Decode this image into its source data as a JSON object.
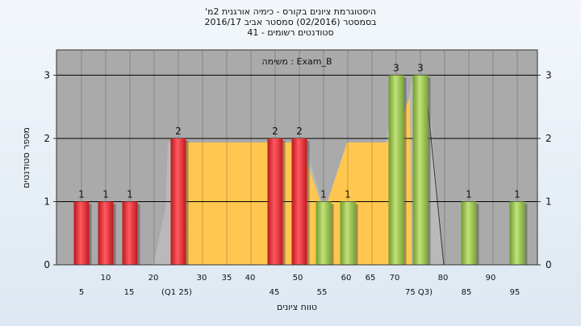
{
  "chart_data": {
    "type": "bar",
    "title_lines": [
      "היסטוגרמת ציונים בקורס - כימיה אורגנית 2מ'",
      "בסמסטר (02/2016) סמסטר אביב 2016/17",
      "סטודנטים רשומים - 41"
    ],
    "annotation": "משימה : Exam_B",
    "xlabel": "טווח ציונים",
    "ylabel": "מספר סטודנטים",
    "ylim": [
      0,
      3.4
    ],
    "y_ticks": [
      "0",
      "1",
      "2",
      "3"
    ],
    "x_tick_labels_top": [
      "10",
      "20",
      "30",
      "35",
      "40",
      "50",
      "60",
      "65",
      "70",
      "80",
      "90"
    ],
    "x_tick_labels_bottom": [
      "5",
      "15",
      "(Q1 25)",
      "45",
      "55",
      "75 Q3)",
      "85",
      "95"
    ],
    "categories": [
      "5",
      "10",
      "15",
      "25",
      "45",
      "50",
      "55",
      "60",
      "70",
      "75",
      "85",
      "95"
    ],
    "values": [
      1,
      1,
      1,
      2,
      2,
      2,
      1,
      1,
      3,
      3,
      1,
      1
    ],
    "value_labels": [
      "1",
      "1",
      "1",
      "2",
      "2",
      "2",
      "1",
      "1",
      "3",
      "3",
      "1",
      "1"
    ],
    "bar_colors": [
      "#e8343a",
      "#e8343a",
      "#e8343a",
      "#e8343a",
      "#e8343a",
      "#e8343a",
      "#9ccc4d",
      "#9ccc4d",
      "#9ccc4d",
      "#9ccc4d",
      "#9ccc4d",
      "#9ccc4d"
    ],
    "band": {
      "from": "Q1 25",
      "to": "Q3 75",
      "color": "#ffc74f"
    },
    "background_color": "#aaaaaa",
    "grid": true
  }
}
